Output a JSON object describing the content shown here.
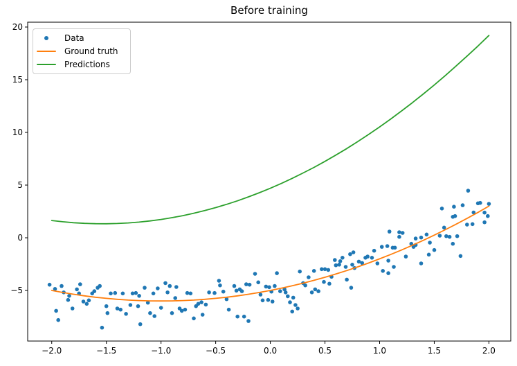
{
  "title": "Before training",
  "colors": {
    "data_marker": "#1f77b4",
    "ground_truth": "#ff7f0e",
    "predictions": "#2ca02c",
    "spine": "#000000",
    "tick_label": "#000000",
    "legend_border": "#cccccc",
    "background": "#ffffff"
  },
  "legend": {
    "position": "upper left",
    "items": [
      {
        "label": "Data",
        "swatch": "dot",
        "color": "#1f77b4"
      },
      {
        "label": "Ground truth",
        "swatch": "line",
        "color": "#ff7f0e"
      },
      {
        "label": "Predictions",
        "swatch": "line",
        "color": "#2ca02c"
      }
    ]
  },
  "chart_data": {
    "type": "scatter",
    "title": "Before training",
    "xlabel": "",
    "ylabel": "",
    "xlim": [
      -2.22,
      2.2
    ],
    "ylim": [
      -9.8,
      20.46
    ],
    "grid": false,
    "legend_position": "upper left",
    "x_ticks": [
      -2,
      -1.5,
      -1,
      -0.5,
      0,
      0.5,
      1,
      1.5,
      2
    ],
    "x_tick_labels": [
      "−2.0",
      "−1.5",
      "−1.0",
      "−0.5",
      "0.0",
      "0.5",
      "1.0",
      "1.5",
      "2.0"
    ],
    "y_ticks": [
      20,
      15,
      10,
      5,
      0,
      -5
    ],
    "y_tick_labels": [
      "20",
      "15",
      "10",
      "5",
      "0",
      "−5"
    ],
    "series": [
      {
        "name": "Data",
        "type": "scatter",
        "color": "#1f77b4",
        "marker_radius": 2.8,
        "points": [
          [
            -2.02,
            -4.45
          ],
          [
            -1.97,
            -4.85
          ],
          [
            -1.96,
            -6.93
          ],
          [
            -1.94,
            -7.81
          ],
          [
            -1.91,
            -4.58
          ],
          [
            -1.89,
            -5.18
          ],
          [
            -1.85,
            -5.9
          ],
          [
            -1.84,
            -5.51
          ],
          [
            -1.81,
            -6.71
          ],
          [
            -1.77,
            -4.89
          ],
          [
            -1.75,
            -5.28
          ],
          [
            -1.74,
            -4.41
          ],
          [
            -1.71,
            -6.05
          ],
          [
            -1.68,
            -6.27
          ],
          [
            -1.66,
            -5.94
          ],
          [
            -1.63,
            -5.28
          ],
          [
            -1.61,
            -5.07
          ],
          [
            -1.58,
            -4.74
          ],
          [
            -1.56,
            -4.58
          ],
          [
            -1.54,
            -8.53
          ],
          [
            -1.5,
            -6.49
          ],
          [
            -1.49,
            -7.15
          ],
          [
            -1.46,
            -5.28
          ],
          [
            -1.42,
            -5.24
          ],
          [
            -1.4,
            -6.71
          ],
          [
            -1.37,
            -6.82
          ],
          [
            -1.35,
            -5.28
          ],
          [
            -1.32,
            -7.22
          ],
          [
            -1.28,
            -6.38
          ],
          [
            -1.26,
            -5.28
          ],
          [
            -1.23,
            -5.24
          ],
          [
            -1.21,
            -6.49
          ],
          [
            -1.2,
            -5.51
          ],
          [
            -1.19,
            -8.2
          ],
          [
            -1.15,
            -4.74
          ],
          [
            -1.12,
            -6.16
          ],
          [
            -1.1,
            -7.15
          ],
          [
            -1.07,
            -5.28
          ],
          [
            -1.06,
            -7.43
          ],
          [
            -1.03,
            -4.8
          ],
          [
            -1.0,
            -6.64
          ],
          [
            -0.96,
            -4.3
          ],
          [
            -0.94,
            -5.18
          ],
          [
            -0.92,
            -4.58
          ],
          [
            -0.9,
            -7.15
          ],
          [
            -0.87,
            -5.72
          ],
          [
            -0.86,
            -4.67
          ],
          [
            -0.83,
            -6.71
          ],
          [
            -0.81,
            -6.93
          ],
          [
            -0.78,
            -6.82
          ],
          [
            -0.76,
            -5.24
          ],
          [
            -0.73,
            -5.28
          ],
          [
            -0.7,
            -7.65
          ],
          [
            -0.68,
            -6.49
          ],
          [
            -0.66,
            -6.27
          ],
          [
            -0.63,
            -6.12
          ],
          [
            -0.62,
            -7.3
          ],
          [
            -0.59,
            -6.34
          ],
          [
            -0.56,
            -5.18
          ],
          [
            -0.51,
            -5.24
          ],
          [
            -0.47,
            -4.08
          ],
          [
            -0.46,
            -4.52
          ],
          [
            -0.43,
            -5.11
          ],
          [
            -0.4,
            -5.83
          ],
          [
            -0.38,
            -6.82
          ],
          [
            -0.33,
            -4.58
          ],
          [
            -0.31,
            -5.02
          ],
          [
            -0.3,
            -7.48
          ],
          [
            -0.28,
            -4.89
          ],
          [
            -0.26,
            -5.07
          ],
          [
            -0.24,
            -7.48
          ],
          [
            -0.22,
            -4.41
          ],
          [
            -0.2,
            -7.9
          ],
          [
            -0.19,
            -4.45
          ],
          [
            -0.14,
            -3.42
          ],
          [
            -0.11,
            -4.23
          ],
          [
            -0.09,
            -5.39
          ],
          [
            -0.07,
            -5.94
          ],
          [
            -0.04,
            -4.63
          ],
          [
            -0.02,
            -5.9
          ],
          [
            -0.01,
            -4.69
          ],
          [
            0.01,
            -5.11
          ],
          [
            0.02,
            -6.05
          ],
          [
            0.04,
            -4.58
          ],
          [
            0.06,
            -3.36
          ],
          [
            0.09,
            -5.07
          ],
          [
            0.13,
            -4.89
          ],
          [
            0.14,
            -5.18
          ],
          [
            0.16,
            -5.55
          ],
          [
            0.18,
            -6.12
          ],
          [
            0.2,
            -7.0
          ],
          [
            0.21,
            -5.68
          ],
          [
            0.23,
            -6.38
          ],
          [
            0.25,
            -6.71
          ],
          [
            0.27,
            -3.2
          ],
          [
            0.3,
            -4.3
          ],
          [
            0.32,
            -4.52
          ],
          [
            0.35,
            -3.75
          ],
          [
            0.38,
            -5.18
          ],
          [
            0.4,
            -3.14
          ],
          [
            0.41,
            -4.89
          ],
          [
            0.44,
            -5.07
          ],
          [
            0.47,
            -2.98
          ],
          [
            0.49,
            -4.19
          ],
          [
            0.5,
            -2.98
          ],
          [
            0.53,
            -3.05
          ],
          [
            0.54,
            -4.36
          ],
          [
            0.56,
            -3.7
          ],
          [
            0.59,
            -2.11
          ],
          [
            0.6,
            -2.61
          ],
          [
            0.63,
            -2.55
          ],
          [
            0.64,
            -2.22
          ],
          [
            0.66,
            -1.89
          ],
          [
            0.69,
            -2.76
          ],
          [
            0.7,
            -3.97
          ],
          [
            0.73,
            -1.56
          ],
          [
            0.74,
            -4.74
          ],
          [
            0.75,
            -2.55
          ],
          [
            0.76,
            -1.38
          ],
          [
            0.77,
            -2.87
          ],
          [
            0.81,
            -2.26
          ],
          [
            0.84,
            -2.39
          ],
          [
            0.87,
            -1.89
          ],
          [
            0.89,
            -1.78
          ],
          [
            0.93,
            -1.89
          ],
          [
            0.95,
            -1.23
          ],
          [
            0.98,
            -2.43
          ],
          [
            1.02,
            -0.86
          ],
          [
            1.03,
            -3.14
          ],
          [
            1.07,
            -0.79
          ],
          [
            1.08,
            -2.17
          ],
          [
            1.08,
            -3.36
          ],
          [
            1.09,
            0.59
          ],
          [
            1.12,
            -0.94
          ],
          [
            1.13,
            -2.76
          ],
          [
            1.14,
            -0.94
          ],
          [
            1.18,
            0.53
          ],
          [
            1.18,
            0.09
          ],
          [
            1.21,
            0.46
          ],
          [
            1.24,
            -1.78
          ],
          [
            1.29,
            -0.57
          ],
          [
            1.31,
            -0.86
          ],
          [
            1.33,
            -0.68
          ],
          [
            1.33,
            -0.07
          ],
          [
            1.38,
            0.02
          ],
          [
            1.38,
            -2.43
          ],
          [
            1.43,
            0.31
          ],
          [
            1.45,
            -1.6
          ],
          [
            1.46,
            -0.46
          ],
          [
            1.5,
            -1.16
          ],
          [
            1.55,
            0.2
          ],
          [
            1.57,
            2.78
          ],
          [
            1.59,
            0.97
          ],
          [
            1.61,
            0.15
          ],
          [
            1.64,
            0.09
          ],
          [
            1.67,
            1.99
          ],
          [
            1.67,
            -0.57
          ],
          [
            1.68,
            2.95
          ],
          [
            1.69,
            2.06
          ],
          [
            1.71,
            0.15
          ],
          [
            1.74,
            -1.73
          ],
          [
            1.76,
            3.09
          ],
          [
            1.8,
            1.25
          ],
          [
            1.81,
            4.47
          ],
          [
            1.85,
            1.3
          ],
          [
            1.86,
            2.4
          ],
          [
            1.9,
            3.27
          ],
          [
            1.92,
            3.31
          ],
          [
            1.96,
            2.39
          ],
          [
            1.96,
            1.47
          ],
          [
            1.99,
            2.06
          ],
          [
            2.0,
            3.22
          ]
        ]
      },
      {
        "name": "Ground truth",
        "type": "line",
        "color": "#ff7f0e",
        "line_width": 1.8,
        "x": [
          -2,
          -1.9,
          -1.8,
          -1.7,
          -1.6,
          -1.5,
          -1.4,
          -1.3,
          -1.2,
          -1.1,
          -1,
          -0.9,
          -0.8,
          -0.7,
          -0.6,
          -0.5,
          -0.4,
          -0.3,
          -0.2,
          -0.1,
          0,
          0.1,
          0.2,
          0.3,
          0.4,
          0.5,
          0.6,
          0.7,
          0.8,
          0.9,
          1,
          1.1,
          1.2,
          1.3,
          1.4,
          1.5,
          1.6,
          1.7,
          1.8,
          1.9,
          2
        ],
        "y": [
          -5,
          -5.19,
          -5.36,
          -5.51,
          -5.64,
          -5.75,
          -5.84,
          -5.91,
          -5.96,
          -5.99,
          -6,
          -5.99,
          -5.96,
          -5.91,
          -5.84,
          -5.75,
          -5.64,
          -5.51,
          -5.36,
          -5.19,
          -5,
          -4.79,
          -4.56,
          -4.31,
          -4.04,
          -3.75,
          -3.44,
          -3.11,
          -2.76,
          -2.39,
          -2,
          -1.59,
          -1.16,
          -0.71,
          -0.24,
          0.25,
          0.76,
          1.29,
          1.84,
          2.41,
          3
        ]
      },
      {
        "name": "Predictions",
        "type": "line",
        "color": "#2ca02c",
        "line_width": 1.8,
        "x": [
          -2,
          -1.9,
          -1.8,
          -1.7,
          -1.6,
          -1.5,
          -1.4,
          -1.3,
          -1.2,
          -1.1,
          -1,
          -0.9,
          -0.8,
          -0.7,
          -0.6,
          -0.5,
          -0.4,
          -0.3,
          -0.2,
          -0.1,
          0,
          0.1,
          0.2,
          0.3,
          0.4,
          0.5,
          0.6,
          0.7,
          0.8,
          0.9,
          1,
          1.1,
          1.2,
          1.3,
          1.4,
          1.5,
          1.6,
          1.7,
          1.8,
          1.9,
          2
        ],
        "y": [
          1.64,
          1.52,
          1.43,
          1.37,
          1.34,
          1.33,
          1.36,
          1.41,
          1.49,
          1.6,
          1.74,
          1.91,
          2.1,
          2.33,
          2.58,
          2.86,
          3.17,
          3.51,
          3.88,
          4.28,
          4.7,
          5.15,
          5.64,
          6.15,
          6.68,
          7.25,
          7.85,
          8.47,
          9.13,
          9.81,
          10.52,
          11.26,
          12.03,
          12.82,
          13.65,
          14.5,
          15.38,
          16.3,
          17.24,
          18.2,
          19.2
        ]
      }
    ]
  }
}
